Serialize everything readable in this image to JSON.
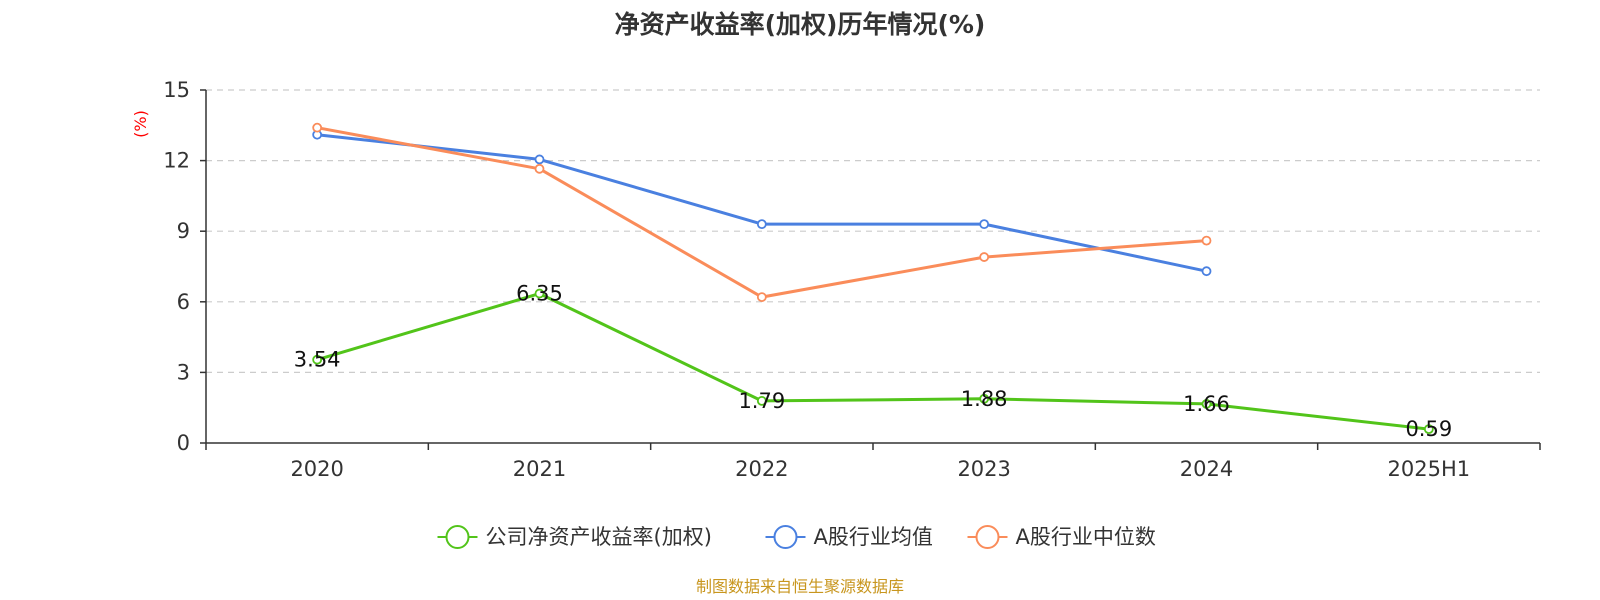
{
  "chart_data": {
    "type": "line",
    "title": "净资产收益率(加权)历年情况(%)",
    "ylabel": "(%)",
    "xlabel": "",
    "categories": [
      "2020",
      "2021",
      "2022",
      "2023",
      "2024",
      "2025H1"
    ],
    "ylim": [
      0,
      15
    ],
    "yticks": [
      0,
      3,
      6,
      9,
      12,
      15
    ],
    "grid": true,
    "legend_position": "bottom-center",
    "series": [
      {
        "name": "公司净资产收益率(加权)",
        "color": "#52c41a",
        "values": [
          3.54,
          6.35,
          1.79,
          1.88,
          1.66,
          0.59
        ],
        "labels": [
          "3.54",
          "6.35",
          "1.79",
          "1.88",
          "1.66",
          "0.59"
        ]
      },
      {
        "name": "A股行业均值",
        "color": "#4a80e0",
        "values": [
          13.1,
          12.05,
          9.3,
          9.3,
          7.3,
          null
        ]
      },
      {
        "name": "A股行业中位数",
        "color": "#fa8c5a",
        "values": [
          13.4,
          11.65,
          6.2,
          7.9,
          8.6,
          null
        ]
      }
    ],
    "source": "制图数据来自恒生聚源数据库"
  }
}
